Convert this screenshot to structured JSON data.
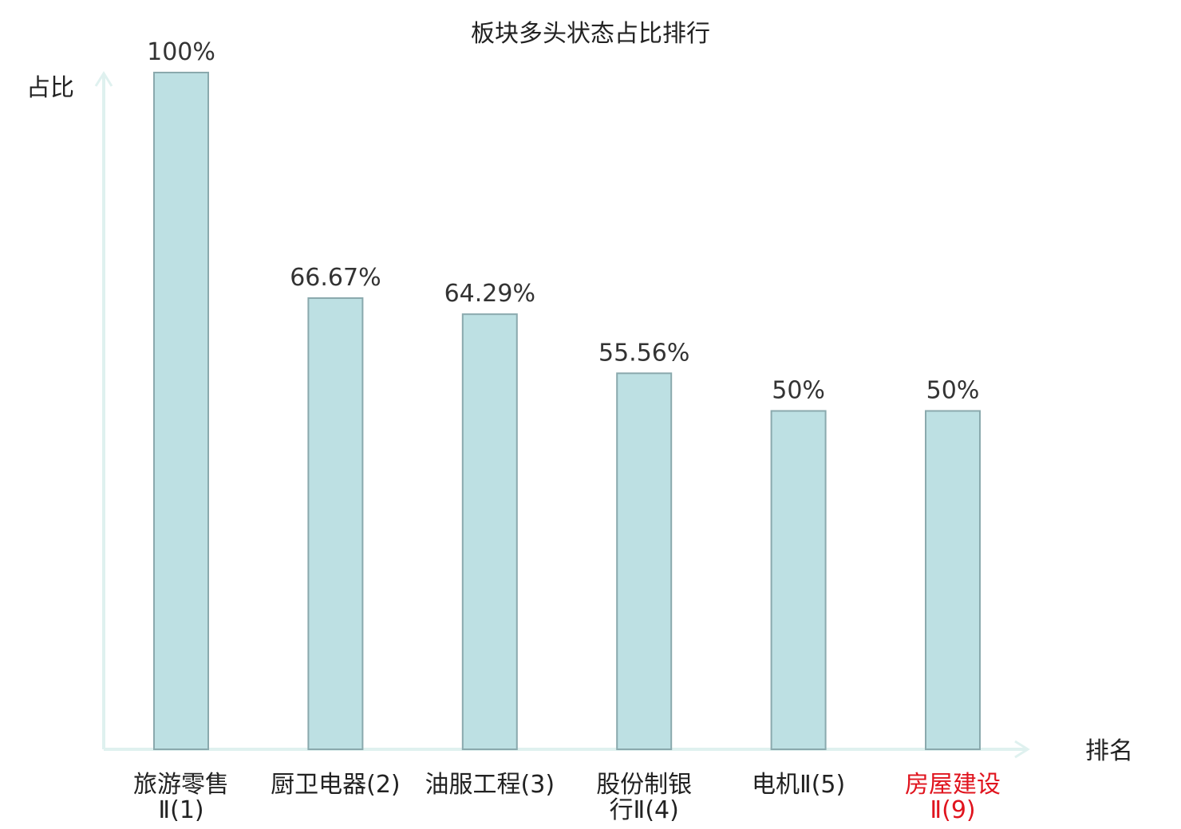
{
  "chart_data": {
    "type": "bar",
    "title": "板块多头状态占比排行",
    "ylabel": "占比",
    "xlabel": "排名",
    "ylim": [
      0,
      100
    ],
    "grid": false,
    "categories": [
      {
        "lines": [
          "旅游零售",
          "Ⅱ(1)"
        ],
        "highlight": false
      },
      {
        "lines": [
          "厨卫电器(2)"
        ],
        "highlight": false
      },
      {
        "lines": [
          "油服工程(3)"
        ],
        "highlight": false
      },
      {
        "lines": [
          "股份制银",
          "行Ⅱ(4)"
        ],
        "highlight": false
      },
      {
        "lines": [
          "电机Ⅱ(5)"
        ],
        "highlight": false
      },
      {
        "lines": [
          "房屋建设",
          "Ⅱ(9)"
        ],
        "highlight": true
      }
    ],
    "values": [
      100,
      66.67,
      64.29,
      55.56,
      50,
      50
    ],
    "value_labels": [
      "100%",
      "66.67%",
      "64.29%",
      "55.56%",
      "50%",
      "50%"
    ],
    "colors": {
      "bar_fill": "#bde0e3",
      "bar_stroke": "#8aa9ad",
      "axis": "#dff1ef",
      "highlight_text": "#e0141e"
    }
  }
}
